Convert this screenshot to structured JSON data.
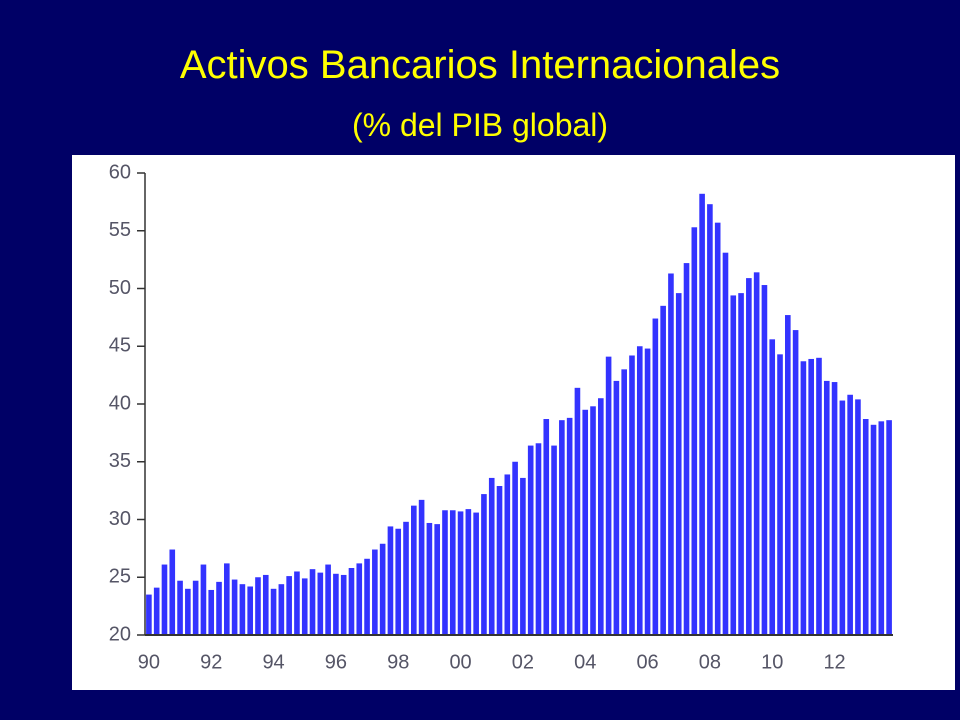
{
  "chart_data": {
    "type": "bar",
    "title": "Activos Bancarios Internacionales",
    "subtitle": "(% del PIB global)",
    "color": "#3333ff",
    "categories": [
      "90",
      null,
      null,
      null,
      null,
      null,
      null,
      null,
      "92",
      null,
      null,
      null,
      null,
      null,
      null,
      null,
      "94",
      null,
      null,
      null,
      null,
      null,
      null,
      null,
      "96",
      null,
      null,
      null,
      null,
      null,
      null,
      null,
      "98",
      null,
      null,
      null,
      null,
      null,
      null,
      null,
      "00",
      null,
      null,
      null,
      null,
      null,
      null,
      null,
      "02",
      null,
      null,
      null,
      null,
      null,
      null,
      null,
      "04",
      null,
      null,
      null,
      null,
      null,
      null,
      null,
      "06",
      null,
      null,
      null,
      null,
      null,
      null,
      null,
      "08",
      null,
      null,
      null,
      null,
      null,
      null,
      null,
      "10",
      null,
      null,
      null,
      null,
      null,
      null,
      null,
      "12",
      null,
      null,
      null,
      null,
      null,
      null,
      null
    ],
    "values": [
      23.5,
      24.1,
      26.1,
      27.4,
      24.7,
      24.0,
      24.7,
      26.1,
      23.9,
      24.6,
      26.2,
      24.8,
      24.4,
      24.2,
      25.0,
      25.2,
      24.0,
      24.4,
      25.1,
      25.5,
      24.9,
      25.7,
      25.4,
      26.1,
      25.3,
      25.2,
      25.8,
      26.2,
      26.6,
      27.4,
      27.9,
      29.4,
      29.2,
      29.8,
      31.2,
      31.7,
      29.7,
      29.6,
      30.8,
      30.8,
      30.7,
      30.9,
      30.6,
      32.2,
      33.6,
      32.9,
      33.9,
      35.0,
      33.6,
      36.4,
      36.6,
      38.7,
      36.4,
      38.6,
      38.8,
      41.4,
      39.5,
      39.8,
      40.5,
      44.1,
      42.0,
      43.0,
      44.2,
      45.0,
      44.8,
      47.4,
      48.5,
      51.3,
      49.6,
      52.2,
      55.3,
      58.2,
      57.3,
      55.7,
      53.1,
      49.4,
      49.6,
      50.9,
      51.4,
      50.3,
      45.6,
      44.3,
      47.7,
      46.4,
      43.7,
      43.9,
      44.0,
      42.0,
      41.9,
      40.3,
      40.8,
      40.4,
      38.7,
      38.2,
      38.5,
      38.6
    ],
    "ylim": [
      20,
      60
    ],
    "yticks": [
      20,
      25,
      30,
      35,
      40,
      45,
      50,
      55,
      60
    ]
  }
}
